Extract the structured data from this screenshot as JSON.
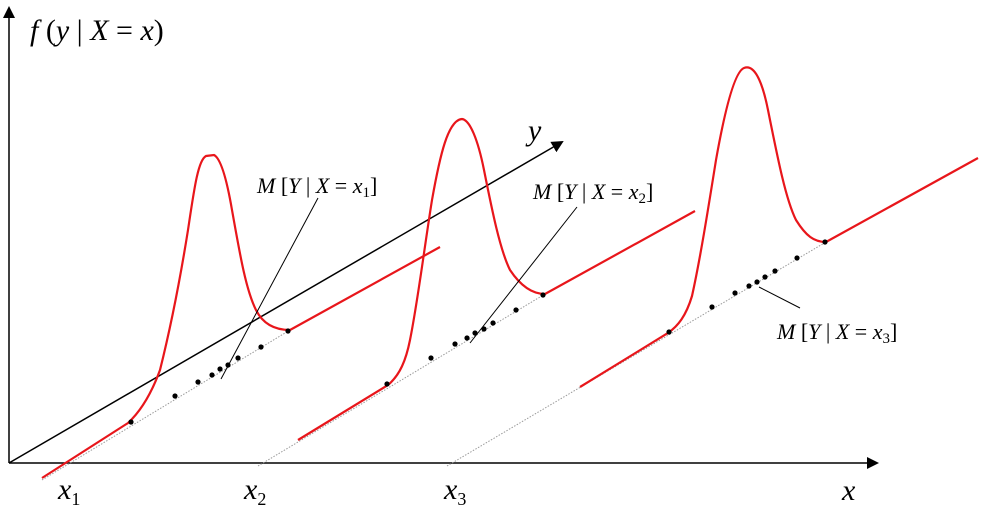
{
  "axes": {
    "vertical_label": {
      "f": "f",
      "open": " (",
      "y": "y",
      "bar": " | ",
      "X": "X",
      "eq": " = ",
      "x": "x",
      "close": ")"
    },
    "depth_label": "y",
    "horizontal_label": "x"
  },
  "x_ticks": [
    {
      "base": "x",
      "sub": "1"
    },
    {
      "base": "x",
      "sub": "2"
    },
    {
      "base": "x",
      "sub": "3"
    }
  ],
  "annotations": [
    {
      "M": "M",
      "open": " [",
      "Y": "Y",
      "bar": " | ",
      "X": "X",
      "eq": " = ",
      "x": "x",
      "sub": "1",
      "close": "]"
    },
    {
      "M": "M",
      "open": " [",
      "Y": "Y",
      "bar": " | ",
      "X": "X",
      "eq": " = ",
      "x": "x",
      "sub": "2",
      "close": "]"
    },
    {
      "M": "M",
      "open": " [",
      "Y": "Y",
      "bar": " | ",
      "X": "X",
      "eq": " = ",
      "x": "x",
      "sub": "3",
      "close": "]"
    }
  ],
  "colors": {
    "density_curve": "#e8161b",
    "axes": "#000000",
    "baseline": "#9a9a9a",
    "points": "#000000"
  },
  "icons": {
    "axis_arrow": "arrowhead"
  }
}
